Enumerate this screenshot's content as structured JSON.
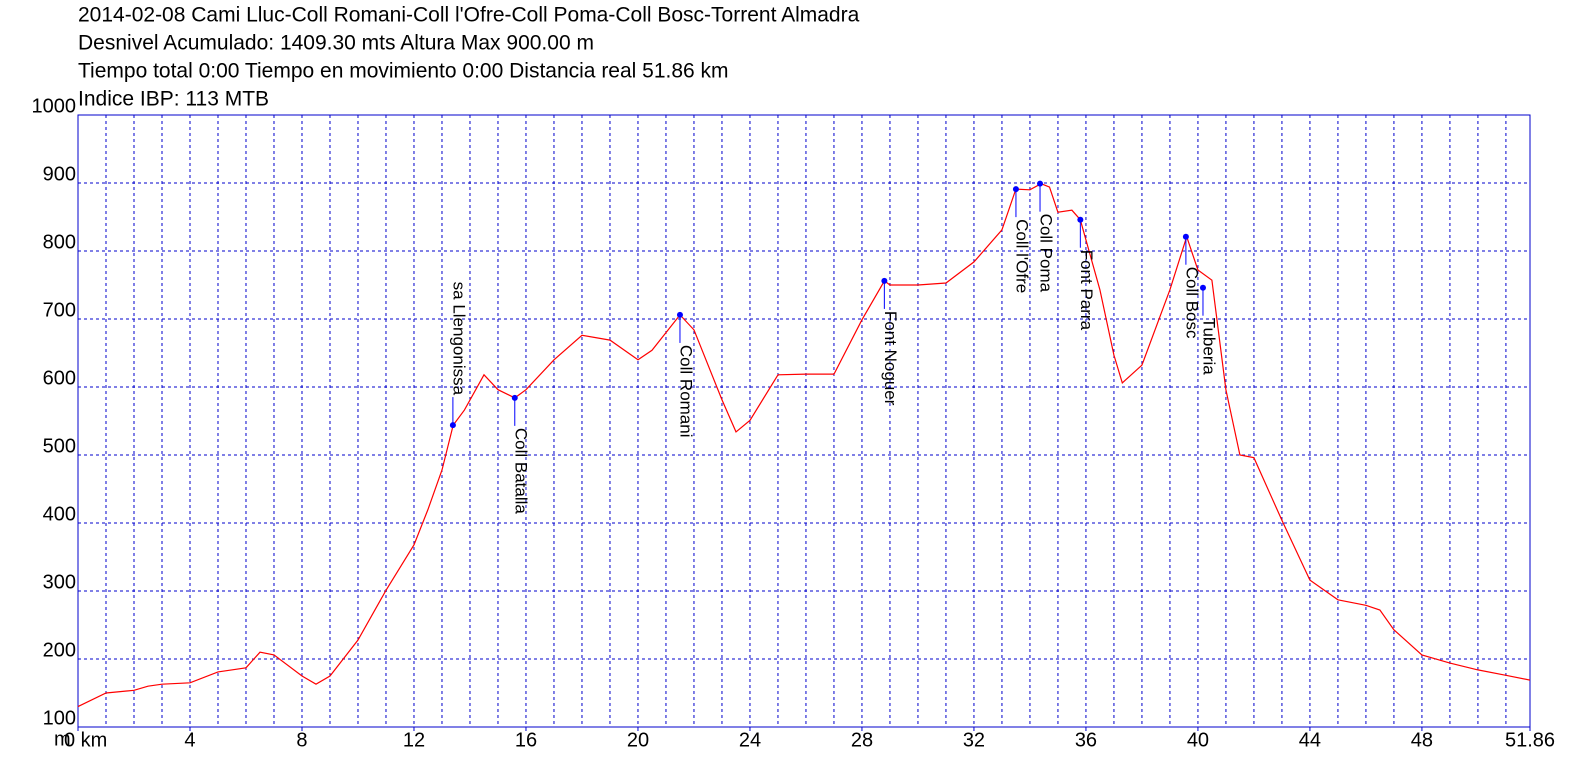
{
  "chart_data": {
    "type": "line",
    "title": "2014-02-08 Cami Lluc-Coll Romani-Coll l'Ofre-Coll Poma-Coll Bosc-Torrent Almadra",
    "subtitles": [
      "Desnivel Acumulado: 1409.30 mts  Altura Max 900.00 m",
      "Tiempo total 0:00 Tiempo en movimiento 0:00 Distancia real 51.86 km",
      "Indice IBP: 113 MTB"
    ],
    "ylabel": "m",
    "xlim": [
      0,
      51.86
    ],
    "ylim": [
      100,
      1000
    ],
    "xticks": [
      {
        "value": 0,
        "label": "0 km"
      },
      4,
      8,
      12,
      16,
      20,
      24,
      28,
      32,
      36,
      40,
      44,
      48,
      51.86
    ],
    "yticks": [
      100,
      200,
      300,
      400,
      500,
      600,
      700,
      800,
      900,
      1000
    ],
    "xgrid": [
      1,
      2,
      3,
      4,
      5,
      6,
      7,
      8,
      9,
      10,
      11,
      12,
      13,
      14,
      15,
      16,
      17,
      18,
      19,
      20,
      21,
      22,
      23,
      24,
      25,
      26,
      27,
      28,
      29,
      30,
      31,
      32,
      33,
      34,
      35,
      36,
      37,
      38,
      39,
      40,
      41,
      42,
      43,
      44,
      45,
      46,
      47,
      48,
      49,
      50,
      51
    ],
    "grid": true,
    "color": "#ff0000",
    "grid_color": "#0000cc",
    "x": [
      0,
      1,
      2,
      2.5,
      3,
      4,
      5,
      6,
      6.5,
      7,
      8,
      8.5,
      9,
      10,
      11,
      12,
      12.5,
      13,
      13.4,
      13.8,
      14.5,
      15,
      15.6,
      16,
      17,
      18,
      19,
      20,
      20.5,
      21.5,
      22,
      23,
      23.5,
      24,
      25,
      26,
      27,
      28,
      28.8,
      29,
      30,
      31,
      32,
      33,
      33.5,
      34,
      34.4,
      34.7,
      35,
      35.5,
      35.8,
      36.5,
      37,
      37.3,
      38,
      39,
      39.6,
      40,
      40.5,
      41,
      41.5,
      42,
      43,
      44,
      45,
      46,
      46.5,
      47,
      48,
      49,
      50,
      51,
      51.86
    ],
    "values": [
      130,
      150,
      154,
      160,
      163,
      165,
      181,
      187,
      210,
      206,
      175,
      163,
      175,
      228,
      301,
      368,
      420,
      478,
      544,
      566,
      618,
      596,
      584,
      596,
      640,
      676,
      669,
      640,
      654,
      706,
      684,
      581,
      534,
      551,
      618,
      619,
      619,
      699,
      756,
      750,
      750,
      753,
      784,
      831,
      891,
      890,
      899,
      894,
      857,
      860,
      846,
      743,
      647,
      606,
      632,
      743,
      821,
      772,
      757,
      596,
      500,
      496,
      404,
      316,
      287,
      279,
      272,
      243,
      206,
      194,
      184,
      176,
      169
    ],
    "waypoints": {
      "color": "#0000ff",
      "labels": [
        "sa Llengonissa",
        "Coll Batalla",
        "Coll Romani",
        "Font Noguer",
        "Coll l'Ofre",
        "Coll Poma",
        "Font Parra",
        "Coll Bosc",
        "Tuberia"
      ],
      "x": [
        13.39,
        15.6,
        21.5,
        28.8,
        33.5,
        34.36,
        35.8,
        39.57,
        40.18
      ],
      "values": [
        544,
        584,
        706,
        756,
        891,
        899,
        846,
        821,
        746
      ],
      "label_side": [
        "up",
        "down",
        "down",
        "down",
        "down",
        "down",
        "down",
        "down",
        "down"
      ]
    }
  }
}
